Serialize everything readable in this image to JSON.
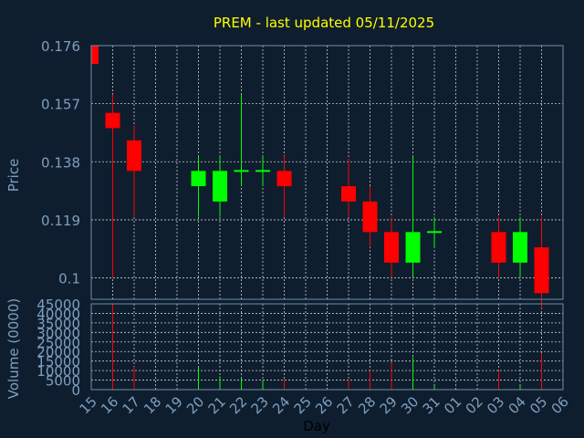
{
  "chart_data": {
    "type": "candlestick",
    "title": "PREM - last updated 05/11/2025",
    "price_panel": {
      "ylabel": "Price",
      "ylim": [
        0.093,
        0.176
      ],
      "yticks": [
        0.176,
        0.157,
        0.138,
        0.119,
        0.1
      ],
      "ytick_labels": [
        "0.176",
        "0.157",
        "0.138",
        "0.119",
        "0.1"
      ],
      "grid": true
    },
    "volume_panel": {
      "ylabel": "Volume (0000)",
      "ylim": [
        0,
        45000
      ],
      "yticks": [
        0,
        5000,
        10000,
        15000,
        20000,
        25000,
        30000,
        35000,
        40000,
        45000
      ],
      "ytick_labels": [
        "0",
        "5000",
        "10000",
        "15000",
        "20000",
        "25000",
        "30000",
        "35000",
        "40000",
        "45000"
      ],
      "grid": true
    },
    "xlabel": "Day",
    "x_tick_labels": [
      "15",
      "16",
      "17",
      "18",
      "19",
      "20",
      "21",
      "22",
      "23",
      "24",
      "25",
      "26",
      "27",
      "28",
      "29",
      "30",
      "31",
      "01",
      "02",
      "03",
      "04",
      "05",
      "06"
    ],
    "colors": {
      "up": "#00ff00",
      "down": "#ff0000",
      "background": "#0f1e2e",
      "title": "#ffff00",
      "text": "#7e9fc0"
    },
    "candles": [
      {
        "day": "15",
        "open": 0.176,
        "high": 0.176,
        "low": 0.17,
        "close": 0.17,
        "volume": 0
      },
      {
        "day": "16",
        "open": 0.154,
        "high": 0.16,
        "low": 0.1,
        "close": 0.149,
        "volume": 45000
      },
      {
        "day": "17",
        "open": 0.145,
        "high": 0.15,
        "low": 0.12,
        "close": 0.135,
        "volume": 12000
      },
      {
        "day": "20",
        "open": 0.13,
        "high": 0.14,
        "low": 0.12,
        "close": 0.135,
        "volume": 12000
      },
      {
        "day": "21",
        "open": 0.125,
        "high": 0.14,
        "low": 0.12,
        "close": 0.135,
        "volume": 7000
      },
      {
        "day": "22",
        "open": 0.135,
        "high": 0.16,
        "low": 0.13,
        "close": 0.135,
        "volume": 6000
      },
      {
        "day": "23",
        "open": 0.135,
        "high": 0.14,
        "low": 0.13,
        "close": 0.135,
        "volume": 5000
      },
      {
        "day": "24",
        "open": 0.135,
        "high": 0.14,
        "low": 0.12,
        "close": 0.13,
        "volume": 5000
      },
      {
        "day": "27",
        "open": 0.13,
        "high": 0.139,
        "low": 0.12,
        "close": 0.125,
        "volume": 5000
      },
      {
        "day": "28",
        "open": 0.125,
        "high": 0.13,
        "low": 0.11,
        "close": 0.115,
        "volume": 10000
      },
      {
        "day": "29",
        "open": 0.115,
        "high": 0.12,
        "low": 0.1,
        "close": 0.105,
        "volume": 14000
      },
      {
        "day": "30",
        "open": 0.105,
        "high": 0.14,
        "low": 0.1,
        "close": 0.115,
        "volume": 17000
      },
      {
        "day": "31",
        "open": 0.115,
        "high": 0.12,
        "low": 0.11,
        "close": 0.115,
        "volume": 2000
      },
      {
        "day": "03",
        "open": 0.115,
        "high": 0.12,
        "low": 0.1,
        "close": 0.105,
        "volume": 10000
      },
      {
        "day": "04",
        "open": 0.105,
        "high": 0.12,
        "low": 0.1,
        "close": 0.115,
        "volume": 2000
      },
      {
        "day": "05",
        "open": 0.11,
        "high": 0.12,
        "low": 0.09,
        "close": 0.095,
        "volume": 19000
      }
    ]
  }
}
